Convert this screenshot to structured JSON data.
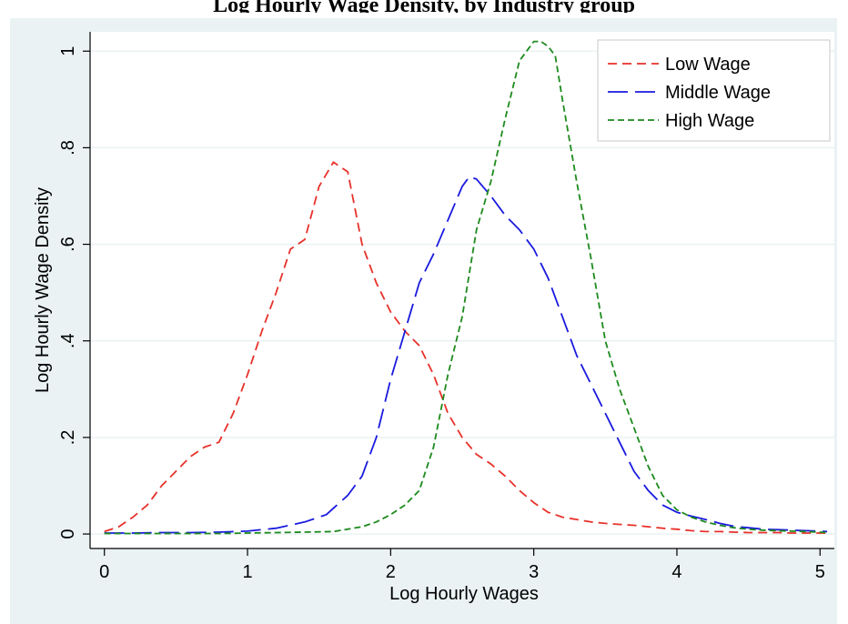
{
  "chart_data": {
    "type": "line",
    "title": "Log Hourly Wage Density, by Industry group",
    "xlabel": "Log Hourly Wages",
    "ylabel": "Log Hourly Wage Density",
    "xlim": [
      -0.1,
      5.1
    ],
    "ylim": [
      -0.03,
      1.04
    ],
    "xticks": [
      0,
      1,
      2,
      3,
      4,
      5
    ],
    "xtick_labels": [
      "0",
      "1",
      "2",
      "3",
      "4",
      "5"
    ],
    "yticks": [
      0,
      0.2,
      0.4,
      0.6,
      0.8,
      1
    ],
    "ytick_labels": [
      "0",
      ".2",
      ".4",
      ".6",
      ".8",
      "1"
    ],
    "grid": true,
    "legend_position": "top-right",
    "series": [
      {
        "name": "Low Wage",
        "color": "#e8312a",
        "dash": "short",
        "x": [
          0,
          0.1,
          0.2,
          0.3,
          0.4,
          0.5,
          0.6,
          0.7,
          0.8,
          0.9,
          1.0,
          1.1,
          1.2,
          1.3,
          1.4,
          1.5,
          1.6,
          1.7,
          1.8,
          1.9,
          2.0,
          2.1,
          2.2,
          2.3,
          2.4,
          2.5,
          2.6,
          2.7,
          2.8,
          2.9,
          3.0,
          3.1,
          3.2,
          3.3,
          3.4,
          3.5,
          3.6,
          3.7,
          3.8,
          3.9,
          4.0,
          4.1,
          4.2,
          4.3,
          4.4,
          4.5,
          4.6,
          4.7,
          4.8,
          4.9,
          5.0,
          5.05
        ],
        "y": [
          0.005,
          0.015,
          0.035,
          0.06,
          0.1,
          0.13,
          0.16,
          0.18,
          0.19,
          0.25,
          0.33,
          0.42,
          0.5,
          0.59,
          0.61,
          0.72,
          0.77,
          0.75,
          0.6,
          0.52,
          0.46,
          0.42,
          0.39,
          0.33,
          0.25,
          0.2,
          0.165,
          0.145,
          0.12,
          0.09,
          0.065,
          0.045,
          0.035,
          0.03,
          0.025,
          0.022,
          0.02,
          0.018,
          0.015,
          0.012,
          0.01,
          0.007,
          0.005,
          0.005,
          0.004,
          0.003,
          0.003,
          0.003,
          0.002,
          0.002,
          0.002,
          0.002
        ]
      },
      {
        "name": "Middle Wage",
        "color": "#1a1adf",
        "dash": "long",
        "x": [
          0,
          0.2,
          0.4,
          0.6,
          0.8,
          1.0,
          1.2,
          1.4,
          1.55,
          1.7,
          1.8,
          1.9,
          2.0,
          2.1,
          2.2,
          2.3,
          2.4,
          2.5,
          2.55,
          2.6,
          2.7,
          2.8,
          2.9,
          3.0,
          3.1,
          3.2,
          3.3,
          3.4,
          3.5,
          3.6,
          3.7,
          3.8,
          3.9,
          4.0,
          4.1,
          4.2,
          4.3,
          4.4,
          4.5,
          4.6,
          4.7,
          4.8,
          4.9,
          5.0,
          5.05
        ],
        "y": [
          0.002,
          0.002,
          0.003,
          0.003,
          0.004,
          0.006,
          0.012,
          0.025,
          0.04,
          0.08,
          0.12,
          0.2,
          0.32,
          0.42,
          0.52,
          0.58,
          0.65,
          0.72,
          0.74,
          0.735,
          0.7,
          0.66,
          0.63,
          0.59,
          0.53,
          0.45,
          0.37,
          0.31,
          0.25,
          0.19,
          0.13,
          0.09,
          0.06,
          0.045,
          0.037,
          0.03,
          0.022,
          0.016,
          0.013,
          0.01,
          0.009,
          0.008,
          0.007,
          0.006,
          0.005
        ]
      },
      {
        "name": "High Wage",
        "color": "#1d8a1d",
        "dash": "medium",
        "x": [
          0,
          0.2,
          0.4,
          0.6,
          0.8,
          1.0,
          1.2,
          1.4,
          1.6,
          1.8,
          1.9,
          2.0,
          2.1,
          2.2,
          2.3,
          2.4,
          2.5,
          2.6,
          2.7,
          2.8,
          2.9,
          3.0,
          3.05,
          3.1,
          3.15,
          3.2,
          3.3,
          3.4,
          3.5,
          3.6,
          3.7,
          3.8,
          3.9,
          4.0,
          4.1,
          4.2,
          4.3,
          4.4,
          4.5,
          4.6,
          4.7,
          4.8,
          4.9,
          5.0,
          5.05
        ],
        "y": [
          0.001,
          0.001,
          0.001,
          0.001,
          0.001,
          0.002,
          0.003,
          0.004,
          0.005,
          0.015,
          0.025,
          0.04,
          0.06,
          0.09,
          0.18,
          0.33,
          0.45,
          0.63,
          0.73,
          0.86,
          0.98,
          1.02,
          1.02,
          1.01,
          0.99,
          0.9,
          0.73,
          0.57,
          0.4,
          0.3,
          0.22,
          0.14,
          0.08,
          0.05,
          0.035,
          0.025,
          0.018,
          0.013,
          0.01,
          0.008,
          0.007,
          0.006,
          0.005,
          0.004,
          0.003
        ]
      }
    ]
  },
  "colors": {
    "outer_background": "#eaf2f3",
    "plot_background": "#ffffff",
    "grid": "#eaf2f3"
  }
}
